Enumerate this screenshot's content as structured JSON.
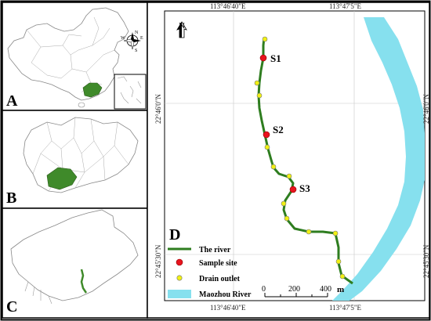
{
  "panels": {
    "a": {
      "letter": "A",
      "compass": {
        "n": "N",
        "s": "S",
        "e": "E",
        "w": "W"
      }
    },
    "b": {
      "letter": "B"
    },
    "c": {
      "letter": "C"
    },
    "d": {
      "letter": "D"
    }
  },
  "coordinates": {
    "longitudes": [
      "113°46'40\"E",
      "113°47'5\"E"
    ],
    "latitudes": [
      "22°46'0\"N",
      "22°45'30\"N"
    ]
  },
  "north_arrow": {
    "label": "N"
  },
  "sites": [
    {
      "label": "S1"
    },
    {
      "label": "S2"
    },
    {
      "label": "S3"
    }
  ],
  "legend": {
    "river": "The river",
    "sample_site": "Sample site",
    "drain_outlet": "Drain outlet",
    "maozhou": "Maozhou River"
  },
  "scale_bar": {
    "ticks": [
      "0",
      "200",
      "400"
    ],
    "unit": "m"
  },
  "colors": {
    "river_line": "#2e7d1f",
    "sample_site": "#e8141e",
    "drain_outlet": "#f0f014",
    "maozhou": "#86e0ee",
    "highlight": "#3f8a2a"
  }
}
